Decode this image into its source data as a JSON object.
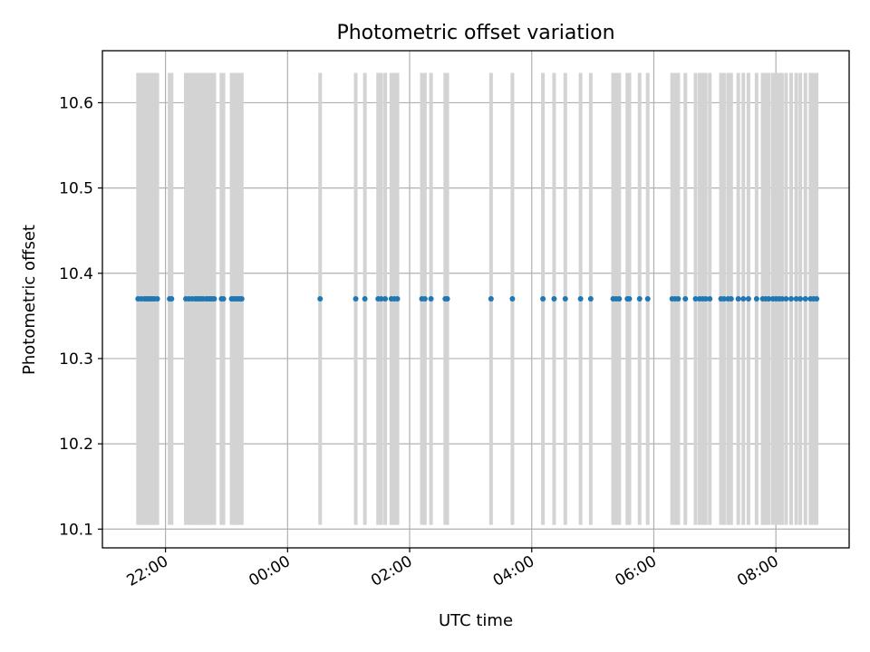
{
  "chart_data": {
    "type": "scatter",
    "title": "Photometric offset variation",
    "xlabel": "UTC time",
    "ylabel": "Photometric offset",
    "xlim": [
      "2023-01-01T20:58:00",
      "2023-01-02T09:12:00"
    ],
    "ylim": [
      10.078,
      10.661
    ],
    "grid": true,
    "x_ticks": [
      {
        "t": "2023-01-01T22:00:00",
        "label": "22:00"
      },
      {
        "t": "2023-01-02T00:00:00",
        "label": "00:00"
      },
      {
        "t": "2023-01-02T02:00:00",
        "label": "02:00"
      },
      {
        "t": "2023-01-02T04:00:00",
        "label": "04:00"
      },
      {
        "t": "2023-01-02T06:00:00",
        "label": "06:00"
      },
      {
        "t": "2023-01-02T08:00:00",
        "label": "08:00"
      }
    ],
    "y_ticks": [
      10.1,
      10.2,
      10.3,
      10.4,
      10.5,
      10.6
    ],
    "errorbar_low": 10.105,
    "errorbar_high": 10.635,
    "marker_color": "#1f77b4",
    "errorbar_color": "#d3d3d3",
    "series": [
      {
        "x": [
          "2023-01-01T21:33:00",
          "2023-01-01T21:36:00",
          "2023-01-01T21:39:00",
          "2023-01-01T21:41:00",
          "2023-01-01T21:43:00",
          "2023-01-01T21:45:00",
          "2023-01-01T21:47:00",
          "2023-01-01T21:49:00",
          "2023-01-01T21:52:00",
          "2023-01-01T22:04:00",
          "2023-01-01T22:06:00",
          "2023-01-01T22:20:00",
          "2023-01-01T22:23:00",
          "2023-01-01T22:26:00",
          "2023-01-01T22:29:00",
          "2023-01-01T22:31:00",
          "2023-01-01T22:33:00",
          "2023-01-01T22:35:00",
          "2023-01-01T22:37:00",
          "2023-01-01T22:40:00",
          "2023-01-01T22:42:00",
          "2023-01-01T22:44:00",
          "2023-01-01T22:46:00",
          "2023-01-01T22:48:00",
          "2023-01-01T22:55:00",
          "2023-01-01T22:57:00",
          "2023-01-01T23:05:00",
          "2023-01-01T23:07:00",
          "2023-01-01T23:09:00",
          "2023-01-01T23:11:00",
          "2023-01-01T23:13:00",
          "2023-01-01T23:15:00",
          "2023-01-02T00:32:00",
          "2023-01-02T01:07:00",
          "2023-01-02T01:16:00",
          "2023-01-02T01:29:00",
          "2023-01-02T01:32:00",
          "2023-01-02T01:36:00",
          "2023-01-02T01:42:00",
          "2023-01-02T01:45:00",
          "2023-01-02T01:48:00",
          "2023-01-02T02:12:00",
          "2023-01-02T02:15:00",
          "2023-01-02T02:21:00",
          "2023-01-02T02:35:00",
          "2023-01-02T02:37:00",
          "2023-01-02T03:20:00",
          "2023-01-02T03:41:00",
          "2023-01-02T04:11:00",
          "2023-01-02T04:22:00",
          "2023-01-02T04:33:00",
          "2023-01-02T04:48:00",
          "2023-01-02T04:58:00",
          "2023-01-02T05:20:00",
          "2023-01-02T05:23:00",
          "2023-01-02T05:26:00",
          "2023-01-02T05:34:00",
          "2023-01-02T05:36:00",
          "2023-01-02T05:46:00",
          "2023-01-02T05:54:00",
          "2023-01-02T06:18:00",
          "2023-01-02T06:21:00",
          "2023-01-02T06:24:00",
          "2023-01-02T06:31:00",
          "2023-01-02T06:41:00",
          "2023-01-02T06:45:00",
          "2023-01-02T06:48:00",
          "2023-01-02T06:51:00",
          "2023-01-02T06:55:00",
          "2023-01-02T07:06:00",
          "2023-01-02T07:09:00",
          "2023-01-02T07:13:00",
          "2023-01-02T07:16:00",
          "2023-01-02T07:23:00",
          "2023-01-02T07:28:00",
          "2023-01-02T07:33:00",
          "2023-01-02T07:41:00",
          "2023-01-02T07:47:00",
          "2023-01-02T07:50:00",
          "2023-01-02T07:53:00",
          "2023-01-02T07:57:00",
          "2023-01-02T08:00:00",
          "2023-01-02T08:03:00",
          "2023-01-02T08:06:00",
          "2023-01-02T08:10:00",
          "2023-01-02T08:15:00",
          "2023-01-02T08:20:00",
          "2023-01-02T08:24:00",
          "2023-01-02T08:29:00",
          "2023-01-02T08:34:00",
          "2023-01-02T08:37:00",
          "2023-01-02T08:40:00"
        ],
        "y_constant": 10.37
      }
    ]
  }
}
